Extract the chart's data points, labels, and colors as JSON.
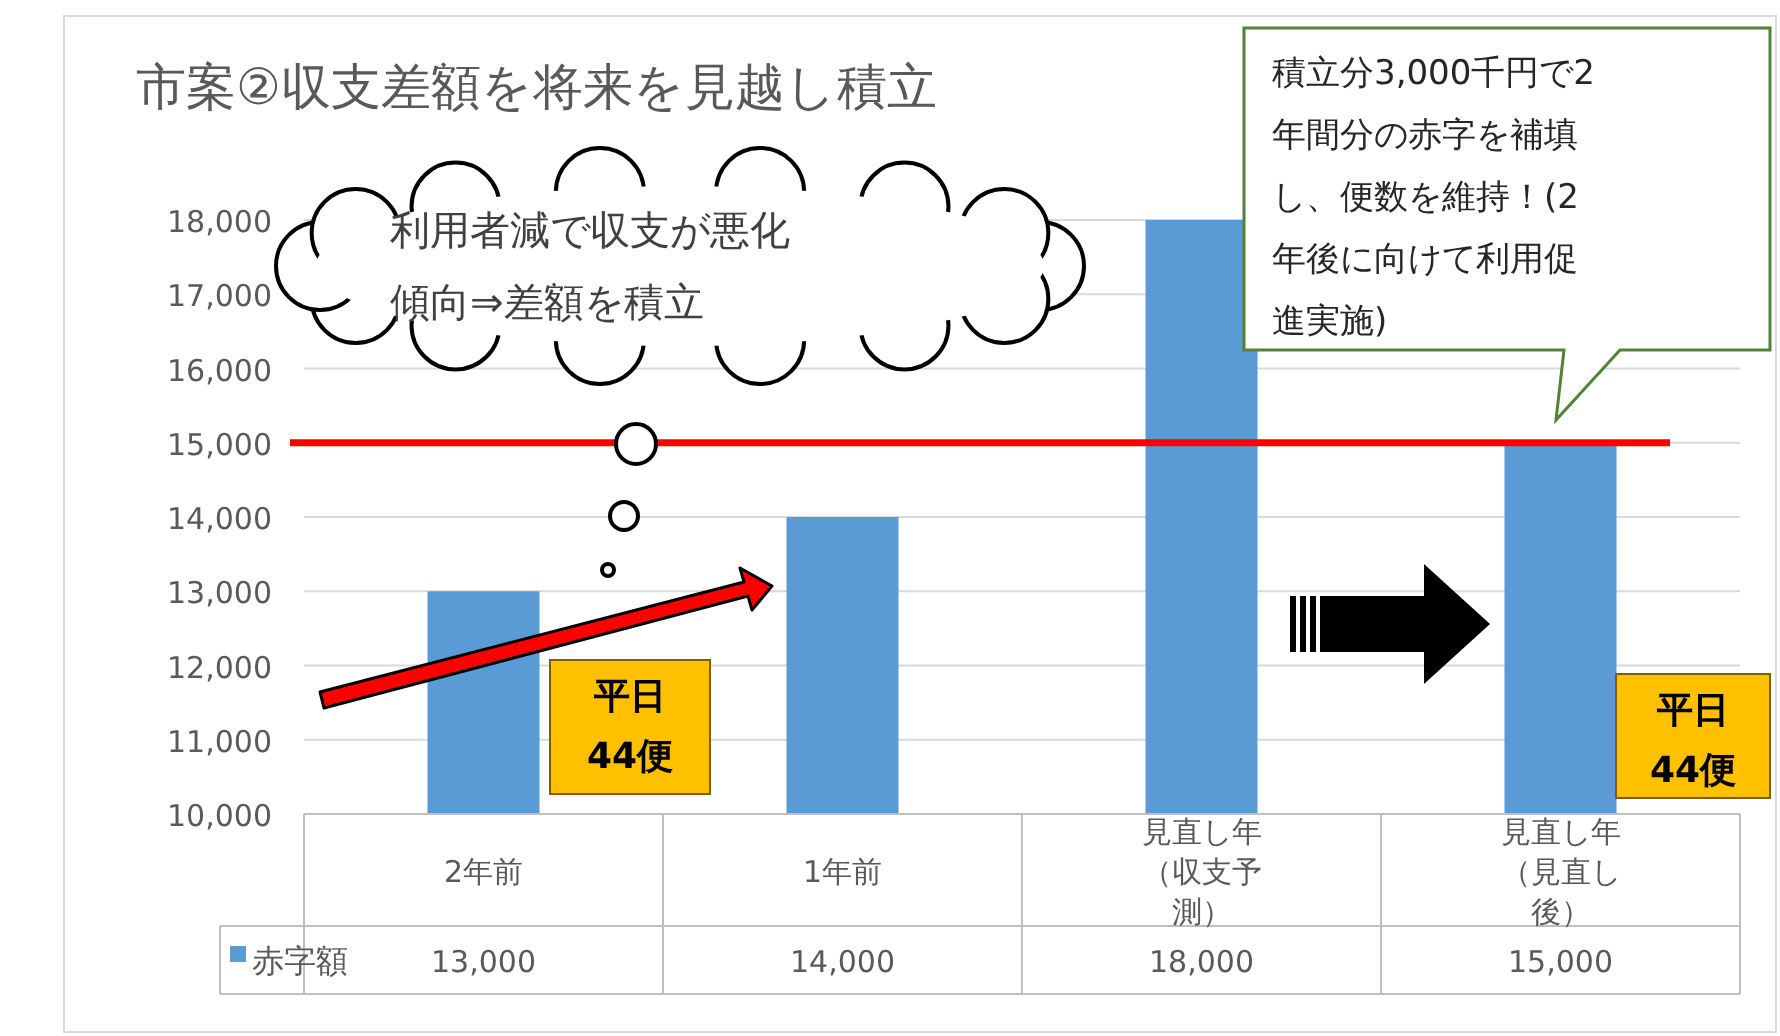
{
  "chart_data": {
    "type": "bar",
    "title": "市案②収支差額を将来を見越し積立",
    "categories": [
      "2年前",
      "1年前",
      "見直し年（収支予測）",
      "見直し年（見直し後）"
    ],
    "series": [
      {
        "name": "赤字額",
        "color": "#5b9bd5",
        "values": [
          13000,
          14000,
          18000,
          15000
        ],
        "value_labels": [
          "13,000",
          "14,000",
          "18,000",
          "15,000"
        ]
      }
    ],
    "ylim": [
      10000,
      18000
    ],
    "yticks": [
      {
        "value": 10000,
        "label": "10,000"
      },
      {
        "value": 11000,
        "label": "11,000"
      },
      {
        "value": 12000,
        "label": "12,000"
      },
      {
        "value": 13000,
        "label": "13,000"
      },
      {
        "value": 14000,
        "label": "14,000"
      },
      {
        "value": 15000,
        "label": "15,000"
      },
      {
        "value": 16000,
        "label": "16,000"
      },
      {
        "value": 17000,
        "label": "17,000"
      },
      {
        "value": 18000,
        "label": "18,000"
      }
    ],
    "grid": "y",
    "legend": "bottom",
    "ref_lines": [
      {
        "axis": "y",
        "value": 15000,
        "color": "#ff0000"
      }
    ],
    "annotations": [
      "利用者減で収支が悪化傾向⇒差額を積立",
      "積立分3,000千円で2年間分の赤字を補填し、便数を維持！(2年後に向けて利用促進実施)",
      "平日\n44便",
      "平日\n44便"
    ]
  }
}
